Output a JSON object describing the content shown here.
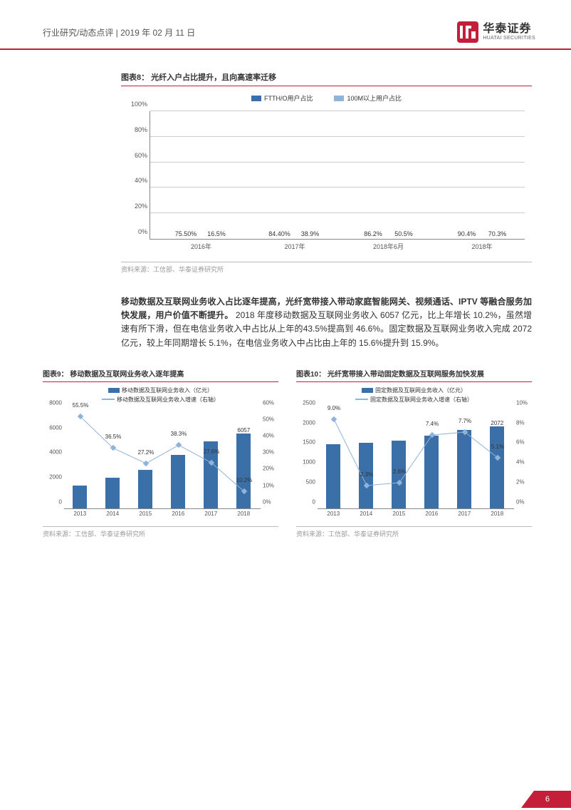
{
  "header": {
    "breadcrumb": "行业研究/动态点评 | 2019 年 02 月 11 日",
    "brand_cn": "华泰证券",
    "brand_en": "HUATAI SECURITIES"
  },
  "colors": {
    "accent": "#c41e3a",
    "series_a": "#3b6fa8",
    "series_b": "#8fb3d9",
    "grid": "#cccccc",
    "text": "#333333",
    "muted": "#999999"
  },
  "chart8": {
    "title": "图表8：  光纤入户占比提升，且向高速率迁移",
    "type": "bar",
    "legend": [
      "FTTH/O用户占比",
      "100M以上用户占比"
    ],
    "categories": [
      "2016年",
      "2017年",
      "2018年6月",
      "2018年"
    ],
    "series_a": [
      75.5,
      84.4,
      86.2,
      90.4
    ],
    "series_a_labels": [
      "75.50%",
      "84.40%",
      "86.2%",
      "90.4%"
    ],
    "series_b": [
      16.5,
      38.9,
      50.5,
      70.3
    ],
    "series_b_labels": [
      "16.5%",
      "38.9%",
      "50.5%",
      "70.3%"
    ],
    "ytick_step": 20,
    "ylim": [
      0,
      100
    ],
    "ytick_labels": [
      "0%",
      "20%",
      "40%",
      "60%",
      "80%",
      "100%"
    ],
    "bar_width_ratio": 0.7,
    "source": "资料来源：工信部、华泰证券研究所"
  },
  "body_paragraph": {
    "bold_prefix": "移动数据及互联网业务收入占比逐年提高，光纤宽带接入带动家庭智能网关、视频通话、IPTV 等融合服务加快发展，用户价值不断提升。",
    "text": " 2018 年度移动数据及互联网业务收入 6057 亿元，比上年增长 10.2%，虽然增速有所下滑，但在电信业务收入中占比从上年的43.5%提高到 46.6%。固定数据及互联网业务收入完成 2072 亿元，较上年同期增长 5.1%，在电信业务收入中占比由上年的 15.6%提升到 15.9%。"
  },
  "chart9": {
    "title": "图表9：  移动数据及互联网业务收入逐年提高",
    "type": "bar+line",
    "legend_bar": "移动数据及互联网业务收入（亿元）",
    "legend_line": "移动数据及互联网业务收入增速（右轴）",
    "categories": [
      "2013",
      "2014",
      "2015",
      "2016",
      "2017",
      "2018"
    ],
    "bar_values": [
      1800,
      2450,
      3100,
      4300,
      5400,
      6057
    ],
    "bar_top_label": "6057",
    "line_values": [
      55.5,
      36.5,
      27.2,
      38.3,
      27.6,
      10.2
    ],
    "line_labels": [
      "55.5%",
      "36.5%",
      "27.2%",
      "38.3%",
      "27.6%",
      "10.2%"
    ],
    "yleft_ticks": [
      0,
      2000,
      4000,
      6000,
      8000
    ],
    "yleft_max": 8000,
    "yright_ticks": [
      "0%",
      "10%",
      "20%",
      "30%",
      "40%",
      "50%",
      "60%"
    ],
    "yright_max": 60,
    "source": "资料来源：工信部、华泰证券研究所"
  },
  "chart10": {
    "title": "图表10：  光纤宽带接入带动固定数据及互联网服务加快发展",
    "type": "bar+line",
    "legend_bar": "固定数据及互联网业务收入（亿元）",
    "legend_line": "固定数据及互联网业务收入增速（右轴）",
    "categories": [
      "2013",
      "2014",
      "2015",
      "2016",
      "2017",
      "2018"
    ],
    "bar_values": [
      1620,
      1650,
      1700,
      1830,
      1970,
      2072
    ],
    "bar_top_label": "2072",
    "line_values": [
      9.0,
      2.3,
      2.6,
      7.4,
      7.7,
      5.1
    ],
    "line_labels": [
      "9.0%",
      "2.3%",
      "2.6%",
      "7.4%",
      "7.7%",
      "5.1%"
    ],
    "yleft_ticks": [
      0,
      500,
      1000,
      1500,
      2000,
      2500
    ],
    "yleft_max": 2500,
    "yright_ticks": [
      "0%",
      "2%",
      "4%",
      "6%",
      "8%",
      "10%"
    ],
    "yright_max": 10,
    "source": "资料来源：工信部、华泰证券研究所"
  },
  "footer": {
    "page": "6"
  }
}
